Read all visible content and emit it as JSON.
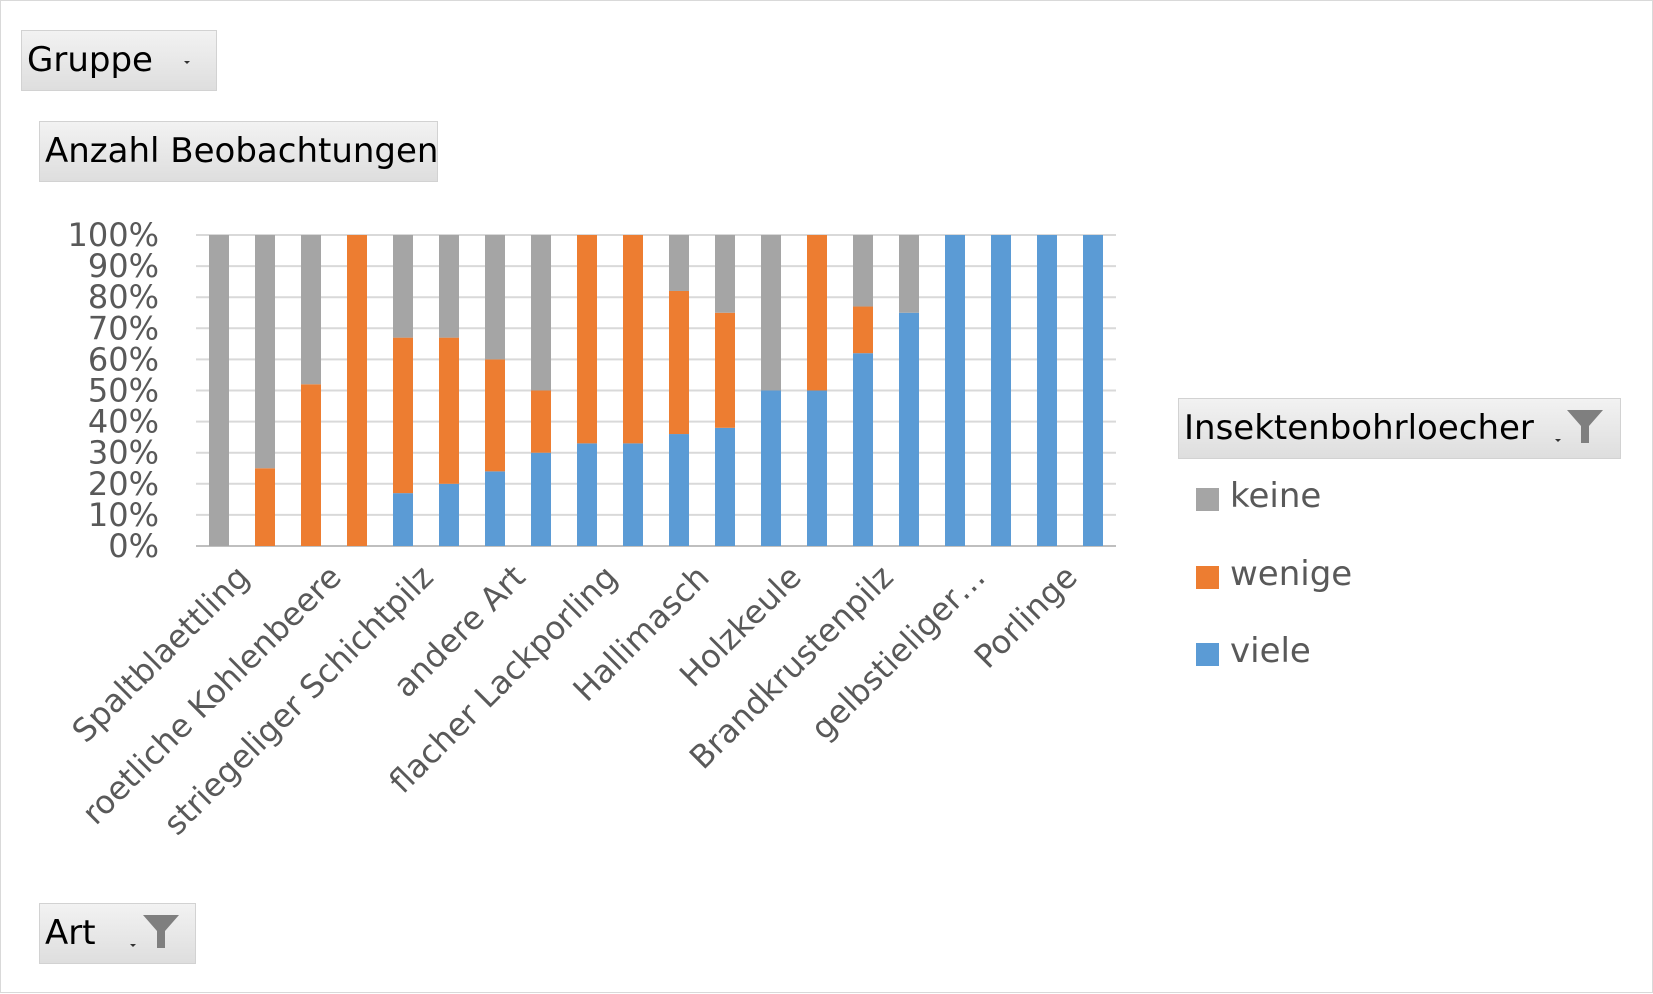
{
  "filters": {
    "gruppe_label": "Gruppe",
    "value_field_label": "Anzahl Beobachtungen",
    "legend_field_label": "Insektenbohrloecher",
    "axis_field_label": "Art"
  },
  "legend": {
    "items": [
      {
        "label": "keine",
        "color": "#a5a5a5"
      },
      {
        "label": "wenige",
        "color": "#ed7d31"
      },
      {
        "label": "viele",
        "color": "#5b9bd5"
      }
    ]
  },
  "chart_data": {
    "type": "bar",
    "stacked": "percent",
    "y_ticks": [
      "0%",
      "10%",
      "20%",
      "30%",
      "40%",
      "50%",
      "60%",
      "70%",
      "80%",
      "90%",
      "100%"
    ],
    "ylim": [
      0,
      100
    ],
    "grid": true,
    "legend_position": "right",
    "categories": [
      "Spaltblaettling",
      "",
      "roetliche Kohlenbeere",
      "",
      "striegeliger Schichtpilz",
      "",
      "andere Art",
      "",
      "flacher Lackporling",
      "",
      "Hallimasch",
      "",
      "Holzkeule",
      "",
      "Brandkrustenpilz",
      "",
      "gelbstieliger…",
      "",
      "Porlinge",
      ""
    ],
    "series": [
      {
        "name": "viele",
        "color": "#5b9bd5",
        "values": [
          0,
          0,
          0,
          0,
          17,
          20,
          24,
          30,
          33,
          33,
          36,
          38,
          50,
          50,
          62,
          75,
          100,
          100,
          100,
          100
        ]
      },
      {
        "name": "wenige",
        "color": "#ed7d31",
        "values": [
          0,
          25,
          52,
          100,
          50,
          47,
          36,
          20,
          67,
          67,
          46,
          37,
          0,
          50,
          15,
          0,
          0,
          0,
          0,
          0
        ]
      },
      {
        "name": "keine",
        "color": "#a5a5a5",
        "values": [
          100,
          75,
          48,
          0,
          33,
          33,
          40,
          50,
          0,
          0,
          18,
          25,
          50,
          0,
          23,
          25,
          0,
          0,
          0,
          0
        ]
      }
    ]
  }
}
